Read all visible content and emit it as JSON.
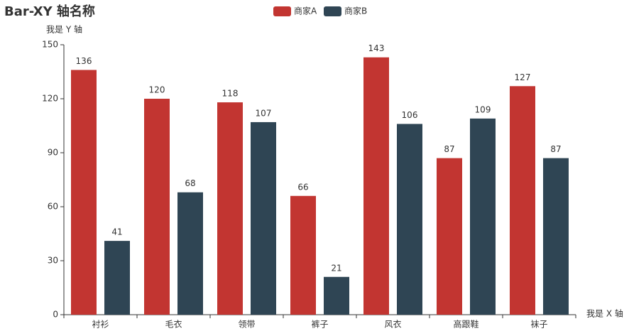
{
  "chart_data": {
    "type": "bar",
    "title": "Bar-XY 轴名称",
    "y_axis_name": "我是 Y 轴",
    "x_axis_name": "我是 X 轴",
    "categories": [
      "衬衫",
      "毛衣",
      "领带",
      "裤子",
      "风衣",
      "高跟鞋",
      "袜子"
    ],
    "series": [
      {
        "name": "商家A",
        "color": "#c23531",
        "values": [
          136,
          120,
          118,
          66,
          143,
          87,
          127
        ]
      },
      {
        "name": "商家B",
        "color": "#2f4554",
        "values": [
          41,
          68,
          107,
          21,
          106,
          109,
          87
        ]
      }
    ],
    "ylim": [
      0,
      150
    ],
    "yticks": [
      0,
      30,
      60,
      90,
      120,
      150
    ],
    "grid": false,
    "legend": "top"
  }
}
